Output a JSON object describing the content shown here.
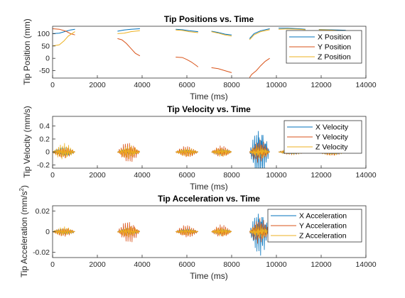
{
  "figure": {
    "background": "#ffffff",
    "series_colors": [
      "#0072BD",
      "#D95319",
      "#EDB120"
    ]
  },
  "chart_data": [
    {
      "type": "line",
      "title": "Tip Positions vs. Time",
      "xlabel": "Time (ms)",
      "ylabel": "Tip Position (mm)",
      "xlim": [
        0,
        14000
      ],
      "ylim": [
        -80,
        130
      ],
      "xticks": [
        0,
        2000,
        4000,
        6000,
        8000,
        10000,
        12000,
        14000
      ],
      "xtick_labels": [
        "0",
        "2000",
        "4000",
        "6000",
        "8000",
        "10000",
        "12000",
        "14000"
      ],
      "yticks": [
        -50,
        0,
        50,
        100
      ],
      "ytick_labels": [
        "-50",
        "0",
        "50",
        "100"
      ],
      "legend_position": "top-right",
      "series": [
        {
          "name": "X Position",
          "segments": [
            {
              "x": [
                0,
                300,
                600,
                800,
                1000
              ],
              "y": [
                100,
                102,
                110,
                115,
                118
              ]
            },
            {
              "x": [
                2900,
                3200,
                3500,
                3900
              ],
              "y": [
                110,
                115,
                118,
                120
              ]
            },
            {
              "x": [
                5500,
                5800,
                6100,
                6500
              ],
              "y": [
                118,
                116,
                112,
                108
              ]
            },
            {
              "x": [
                7100,
                7400,
                7700,
                8000
              ],
              "y": [
                110,
                105,
                98,
                95
              ]
            },
            {
              "x": [
                8800,
                9000,
                9300,
                9700
              ],
              "y": [
                80,
                100,
                112,
                120
              ]
            },
            {
              "x": [
                10100,
                10500,
                11000,
                11300
              ],
              "y": [
                122,
                122,
                120,
                118
              ]
            },
            {
              "x": [
                11900,
                12300,
                12700,
                13100
              ],
              "y": [
                117,
                116,
                115,
                114
              ]
            }
          ]
        },
        {
          "name": "Y Position",
          "segments": [
            {
              "x": [
                0,
                300,
                600,
                800,
                1000
              ],
              "y": [
                120,
                118,
                110,
                100,
                95
              ]
            },
            {
              "x": [
                2900,
                3100,
                3300,
                3500,
                3700,
                3900
              ],
              "y": [
                80,
                75,
                60,
                40,
                20,
                10
              ]
            },
            {
              "x": [
                5500,
                5800,
                6000,
                6200,
                6400,
                6500
              ],
              "y": [
                5,
                3,
                -5,
                -15,
                -28,
                -35
              ]
            },
            {
              "x": [
                7100,
                7400,
                7700,
                8000
              ],
              "y": [
                -38,
                -42,
                -50,
                -58
              ]
            },
            {
              "x": [
                8800,
                8900,
                9100,
                9300,
                9500,
                9700
              ],
              "y": [
                -78,
                -65,
                -50,
                -30,
                -12,
                0
              ]
            }
          ]
        },
        {
          "name": "Z Position",
          "segments": [
            {
              "x": [
                0,
                300,
                500,
                700,
                900,
                1000
              ],
              "y": [
                50,
                55,
                70,
                90,
                102,
                108
              ]
            },
            {
              "x": [
                2900,
                3200,
                3500,
                3900
              ],
              "y": [
                100,
                102,
                108,
                112
              ]
            },
            {
              "x": [
                5500,
                5800,
                6100,
                6500
              ],
              "y": [
                115,
                113,
                108,
                104
              ]
            },
            {
              "x": [
                7100,
                7400,
                7700,
                8000
              ],
              "y": [
                108,
                102,
                95,
                90
              ]
            },
            {
              "x": [
                8800,
                9000,
                9300,
                9700
              ],
              "y": [
                75,
                95,
                108,
                116
              ]
            },
            {
              "x": [
                10100,
                10500,
                11000,
                11300
              ],
              "y": [
                118,
                119,
                118,
                116
              ]
            },
            {
              "x": [
                11900,
                12300,
                12700,
                13100
              ],
              "y": [
                116,
                115,
                113,
                112
              ]
            }
          ]
        }
      ]
    },
    {
      "type": "line",
      "title": "Tip Velocity vs. Time",
      "xlabel": "Time (ms)",
      "ylabel": "Tip Velocity (mm/s)",
      "xlim": [
        0,
        14000
      ],
      "ylim": [
        -0.25,
        0.55
      ],
      "xticks": [
        0,
        2000,
        4000,
        6000,
        8000,
        10000,
        12000,
        14000
      ],
      "xtick_labels": [
        "0",
        "2000",
        "4000",
        "6000",
        "8000",
        "10000",
        "12000",
        "14000"
      ],
      "yticks": [
        -0.2,
        0,
        0.2,
        0.4
      ],
      "ytick_labels": [
        "-0.2",
        "0",
        "0.2",
        "0.4"
      ],
      "legend_position": "top-right",
      "series": [
        {
          "name": "X Velocity",
          "bursts": [
            {
              "start": 0,
              "end": 1000,
              "amp": 0.08
            },
            {
              "start": 2900,
              "end": 3900,
              "amp": 0.06
            },
            {
              "start": 5500,
              "end": 6500,
              "amp": 0.04
            },
            {
              "start": 7100,
              "end": 8000,
              "amp": 0.05
            },
            {
              "start": 8800,
              "end": 9700,
              "amp": 0.45
            },
            {
              "start": 10100,
              "end": 11300,
              "amp": 0.04
            },
            {
              "start": 11900,
              "end": 13100,
              "amp": 0.04
            }
          ]
        },
        {
          "name": "Y Velocity",
          "bursts": [
            {
              "start": 0,
              "end": 1000,
              "amp": 0.1
            },
            {
              "start": 2900,
              "end": 3900,
              "amp": 0.18
            },
            {
              "start": 5500,
              "end": 6500,
              "amp": 0.1
            },
            {
              "start": 7100,
              "end": 8000,
              "amp": 0.1
            },
            {
              "start": 8800,
              "end": 9700,
              "amp": 0.2
            },
            {
              "start": 10100,
              "end": 11300,
              "amp": 0.05
            },
            {
              "start": 11900,
              "end": 13100,
              "amp": 0.06
            }
          ]
        },
        {
          "name": "Z Velocity",
          "bursts": [
            {
              "start": 0,
              "end": 1000,
              "amp": 0.14
            },
            {
              "start": 2900,
              "end": 3900,
              "amp": 0.12
            },
            {
              "start": 5500,
              "end": 6500,
              "amp": 0.08
            },
            {
              "start": 7100,
              "end": 8000,
              "amp": 0.08
            },
            {
              "start": 8800,
              "end": 9700,
              "amp": 0.12
            },
            {
              "start": 10100,
              "end": 11300,
              "amp": 0.06
            },
            {
              "start": 11900,
              "end": 13100,
              "amp": 0.08
            }
          ]
        }
      ]
    },
    {
      "type": "line",
      "title": "Tip Acceleration vs. Time",
      "xlabel": "Time (ms)",
      "ylabel": "Tip Acceleration (mm/s^2)",
      "ylabel_main": "Tip Acceleration (mm/s",
      "ylabel_sup": "2",
      "ylabel_tail": ")",
      "xlim": [
        0,
        14000
      ],
      "ylim": [
        -0.025,
        0.025
      ],
      "xticks": [
        0,
        2000,
        4000,
        6000,
        8000,
        10000,
        12000,
        14000
      ],
      "xtick_labels": [
        "0",
        "2000",
        "4000",
        "6000",
        "8000",
        "10000",
        "12000",
        "14000"
      ],
      "yticks": [
        -0.02,
        0,
        0.02
      ],
      "ytick_labels": [
        "-0.02",
        "0",
        "0.02"
      ],
      "legend_position": "top-right",
      "series": [
        {
          "name": "X Acceleration",
          "bursts": [
            {
              "start": 0,
              "end": 1000,
              "amp": 0.003
            },
            {
              "start": 2900,
              "end": 3900,
              "amp": 0.004
            },
            {
              "start": 5500,
              "end": 6500,
              "amp": 0.003
            },
            {
              "start": 7100,
              "end": 8000,
              "amp": 0.003
            },
            {
              "start": 8800,
              "end": 9700,
              "amp": 0.024
            },
            {
              "start": 10100,
              "end": 11300,
              "amp": 0.002
            },
            {
              "start": 11900,
              "end": 13100,
              "amp": 0.002
            }
          ]
        },
        {
          "name": "Y Acceleration",
          "bursts": [
            {
              "start": 0,
              "end": 1000,
              "amp": 0.005
            },
            {
              "start": 2900,
              "end": 3900,
              "amp": 0.012
            },
            {
              "start": 5500,
              "end": 6500,
              "amp": 0.007
            },
            {
              "start": 7100,
              "end": 8000,
              "amp": 0.007
            },
            {
              "start": 8800,
              "end": 9700,
              "amp": 0.014
            },
            {
              "start": 10100,
              "end": 11300,
              "amp": 0.003
            },
            {
              "start": 11900,
              "end": 13100,
              "amp": 0.003
            }
          ]
        },
        {
          "name": "Z Acceleration",
          "bursts": [
            {
              "start": 0,
              "end": 1000,
              "amp": 0.005
            },
            {
              "start": 2900,
              "end": 3900,
              "amp": 0.006
            },
            {
              "start": 5500,
              "end": 6500,
              "amp": 0.004
            },
            {
              "start": 7100,
              "end": 8000,
              "amp": 0.005
            },
            {
              "start": 8800,
              "end": 9700,
              "amp": 0.008
            },
            {
              "start": 10100,
              "end": 11300,
              "amp": 0.003
            },
            {
              "start": 11900,
              "end": 13100,
              "amp": 0.004
            }
          ]
        }
      ]
    }
  ]
}
